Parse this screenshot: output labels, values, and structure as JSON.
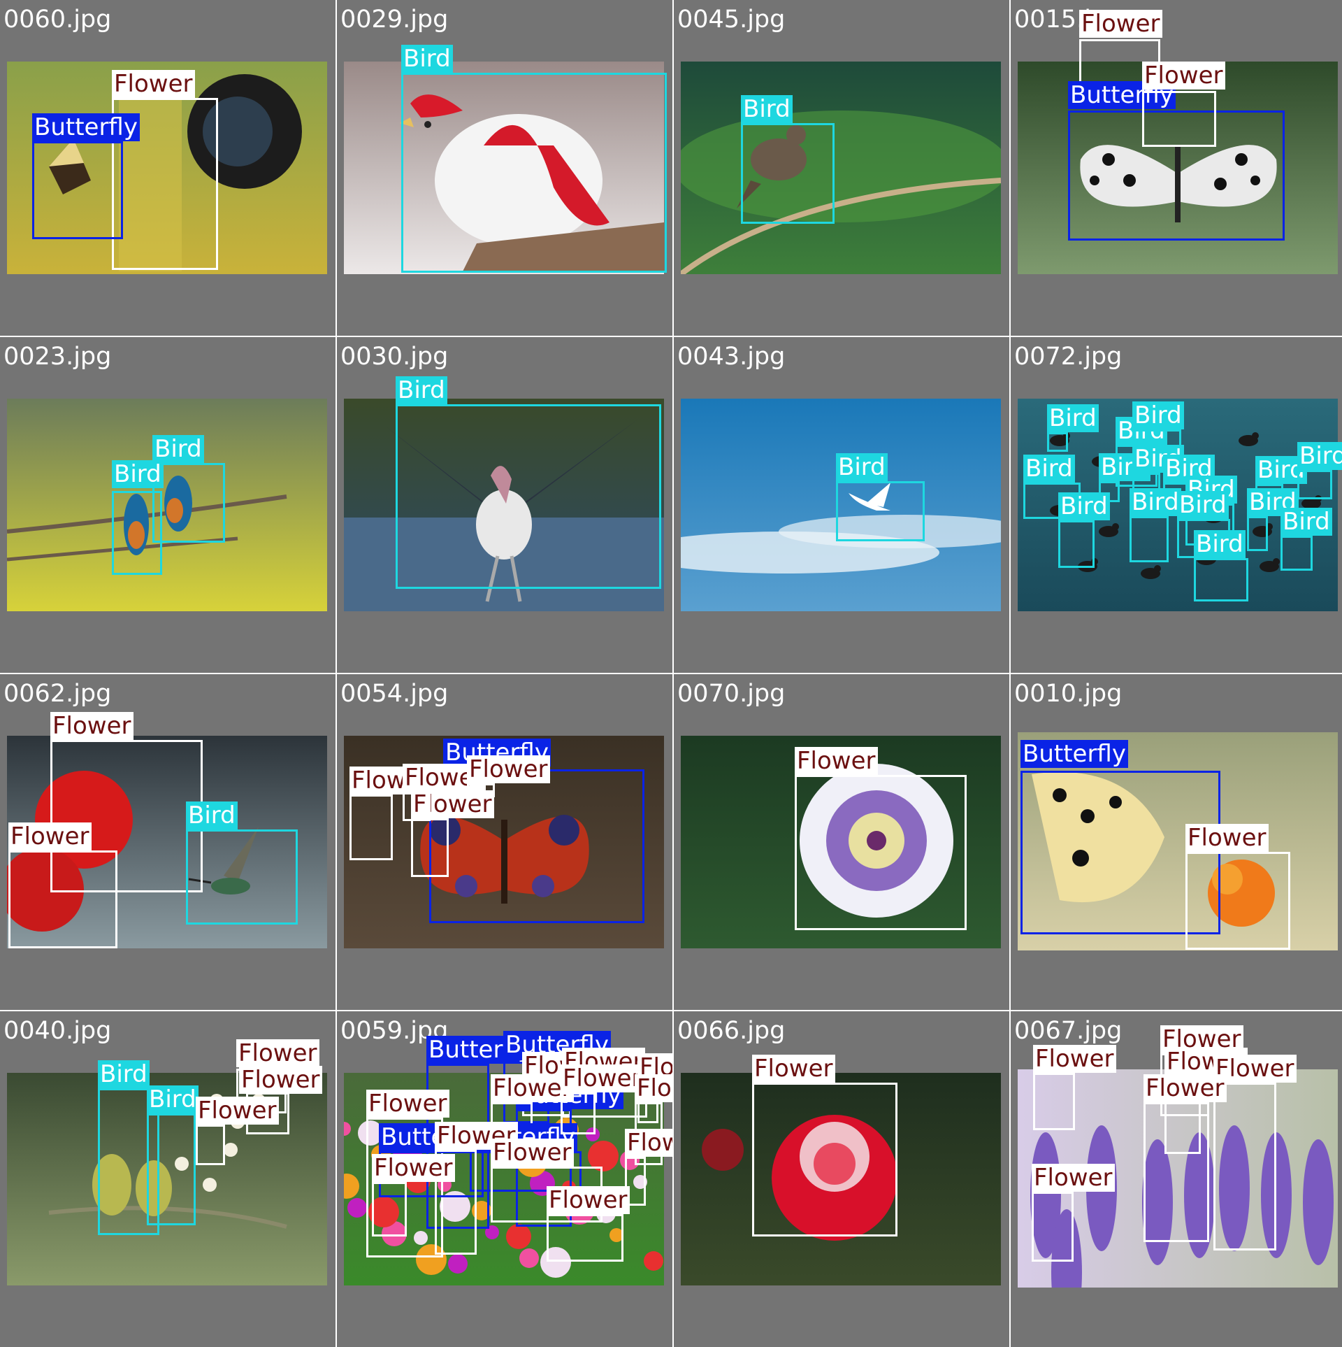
{
  "colors": {
    "background": "#747474",
    "divider": "#ffffff",
    "filename_text": "#ffffff",
    "Bird": {
      "box": "#1ed7e0",
      "label_bg": "#1ed7e0",
      "label_text": "#ffffff"
    },
    "Butterfly": {
      "box": "#0a23e6",
      "label_bg": "#0a23e6",
      "label_text": "#ffffff"
    },
    "Flower": {
      "box": "#ffffff",
      "label_bg": "#ffffff",
      "label_text": "#6b1010"
    }
  },
  "tiles": [
    {
      "filename": "0060.jpg",
      "scene": "butterfly-flowers-camera",
      "detections": [
        {
          "label": "Flower"
        },
        {
          "label": "Butterfly"
        }
      ]
    },
    {
      "filename": "0029.jpg",
      "scene": "red-white-bird",
      "detections": [
        {
          "label": "Bird"
        }
      ]
    },
    {
      "filename": "0045.jpg",
      "scene": "bird-on-branch-green",
      "detections": [
        {
          "label": "Bird"
        }
      ]
    },
    {
      "filename": "0015.jpg",
      "scene": "black-white-butterfly",
      "detections": [
        {
          "label": "Flower"
        },
        {
          "label": "Butterfly"
        },
        {
          "label": "Flower"
        }
      ]
    },
    {
      "filename": "0023.jpg",
      "scene": "two-kingfishers",
      "detections": [
        {
          "label": "Bird"
        },
        {
          "label": "Bird"
        }
      ]
    },
    {
      "filename": "0030.jpg",
      "scene": "stork-spread-wings",
      "detections": [
        {
          "label": "Bird"
        }
      ]
    },
    {
      "filename": "0043.jpg",
      "scene": "tern-in-sky",
      "detections": [
        {
          "label": "Bird"
        }
      ]
    },
    {
      "filename": "0072.jpg",
      "scene": "ducks-on-water",
      "detections": [
        {
          "label": "Bird"
        },
        {
          "label": "Bird"
        },
        {
          "label": "Bird"
        },
        {
          "label": "Bird"
        },
        {
          "label": "Bird"
        },
        {
          "label": "Bird"
        },
        {
          "label": "Bird"
        },
        {
          "label": "Bird"
        },
        {
          "label": "Bird"
        },
        {
          "label": "Bird"
        },
        {
          "label": "Bird"
        },
        {
          "label": "Bird"
        },
        {
          "label": "Bird"
        },
        {
          "label": "Bird"
        },
        {
          "label": "Bird"
        },
        {
          "label": "Bird"
        }
      ]
    },
    {
      "filename": "0062.jpg",
      "scene": "hummingbird-hibiscus",
      "detections": [
        {
          "label": "Flower"
        },
        {
          "label": "Bird"
        },
        {
          "label": "Flower"
        }
      ]
    },
    {
      "filename": "0054.jpg",
      "scene": "peacock-butterfly",
      "detections": [
        {
          "label": "Butterfly"
        },
        {
          "label": "Flower"
        },
        {
          "label": "Flower"
        },
        {
          "label": "Flower"
        },
        {
          "label": "Flower"
        }
      ]
    },
    {
      "filename": "0070.jpg",
      "scene": "passion-flower",
      "detections": [
        {
          "label": "Flower"
        }
      ]
    },
    {
      "filename": "0010.jpg",
      "scene": "swallowtail-orange-flower",
      "detections": [
        {
          "label": "Butterfly"
        },
        {
          "label": "Flower"
        }
      ]
    },
    {
      "filename": "0040.jpg",
      "scene": "two-birds-blossoms",
      "detections": [
        {
          "label": "Flower"
        },
        {
          "label": "Flower"
        },
        {
          "label": "Bird"
        },
        {
          "label": "Bird"
        },
        {
          "label": "Flower"
        }
      ]
    },
    {
      "filename": "0059.jpg",
      "scene": "butterflies-flower-bed",
      "detections": [
        {
          "label": "Butterfly"
        },
        {
          "label": "Butterfly"
        },
        {
          "label": "Flower"
        },
        {
          "label": "Flower"
        },
        {
          "label": "Flower"
        },
        {
          "label": "Butterfly"
        },
        {
          "label": "Flower"
        },
        {
          "label": "Butterfly"
        },
        {
          "label": "Butterfly"
        },
        {
          "label": "Flower"
        },
        {
          "label": "Flower"
        },
        {
          "label": "Flower"
        },
        {
          "label": "Flower"
        },
        {
          "label": "Flower"
        },
        {
          "label": "Flower"
        },
        {
          "label": "Flower"
        },
        {
          "label": "Flower"
        }
      ]
    },
    {
      "filename": "0066.jpg",
      "scene": "red-rose",
      "detections": [
        {
          "label": "Flower"
        }
      ]
    },
    {
      "filename": "0067.jpg",
      "scene": "wisteria",
      "detections": [
        {
          "label": "Flower"
        },
        {
          "label": "Flower"
        },
        {
          "label": "Flower"
        },
        {
          "label": "Flower"
        },
        {
          "label": "Flower"
        },
        {
          "label": "Flower"
        }
      ]
    }
  ]
}
